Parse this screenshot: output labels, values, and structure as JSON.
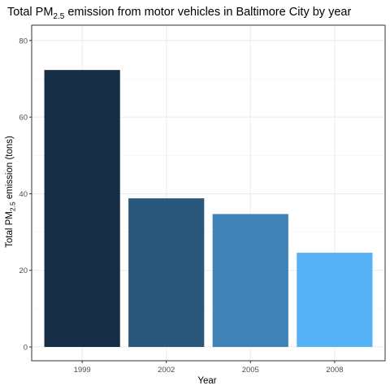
{
  "chart_data": {
    "type": "bar",
    "title": {
      "prefix": "Total PM",
      "subscript": "2.5",
      "suffix": " emission from motor vehicles in Baltimore City by year"
    },
    "xlabel": "Year",
    "ylabel": {
      "prefix": "Total PM",
      "subscript": "2.5",
      "suffix": " emission (tons)"
    },
    "categories": [
      "1999",
      "2002",
      "2005",
      "2008"
    ],
    "values": [
      72.3,
      38.8,
      34.7,
      24.6
    ],
    "colors": [
      "#172d45",
      "#2a587c",
      "#3f82b8",
      "#56b1f7"
    ],
    "ylim": [
      -3.6,
      84
    ],
    "yticks": [
      0,
      20,
      40,
      60,
      80
    ],
    "ytick_labels": [
      "0",
      "20",
      "40",
      "60",
      "80"
    ],
    "grid": true,
    "legend": "none"
  }
}
